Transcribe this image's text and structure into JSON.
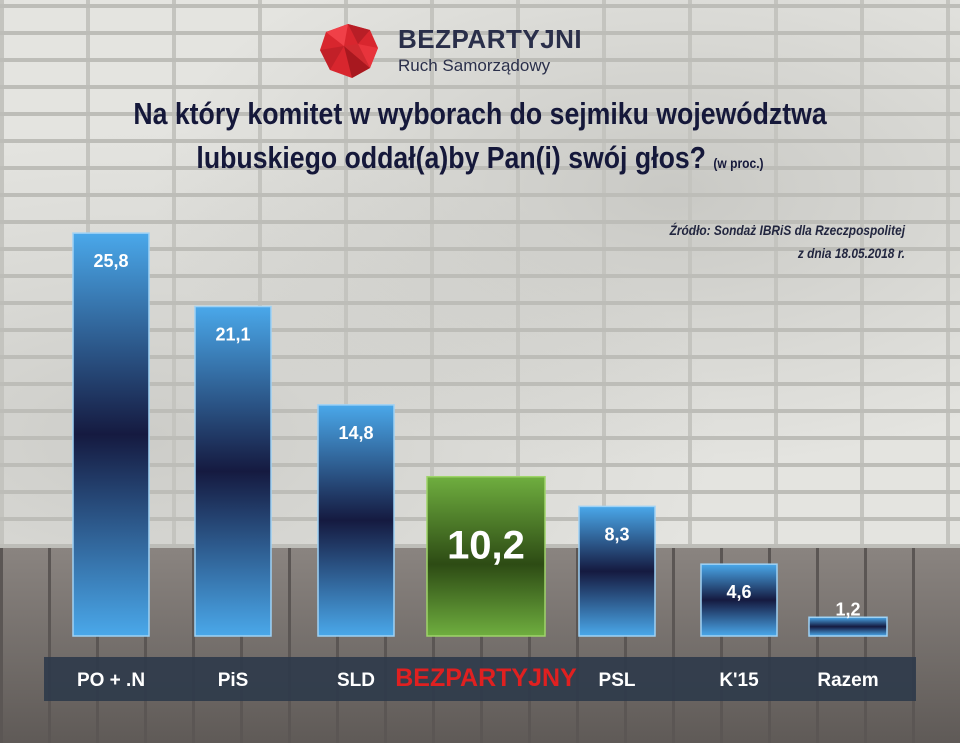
{
  "logo": {
    "name": "BEZPARTYJNI",
    "subtitle": "Ruch Samorządowy"
  },
  "title": {
    "line1": "Na który komitet w wyborach do sejmiku województwa",
    "line2": "lubuskiego oddał(a)by Pan(i) swój głos?",
    "unit": "(w proc.)"
  },
  "source": {
    "line1": "Źródło: Sondaż IBRiS dla Rzeczpospolitej",
    "line2": "z dnia 18.05.2018 r."
  },
  "colors": {
    "bar_blue_light": "#4aa8ea",
    "bar_blue_dark": "#151a40",
    "bar_green_light": "#6fae3f",
    "bar_green_dark": "#2d4b14",
    "label_strip": "#2e3a4a",
    "highlight_label": "#e02020"
  },
  "chart_data": {
    "type": "bar",
    "categories": [
      "PO + .N",
      "PiS",
      "SLD",
      "BEZPARTYJNY",
      "PSL",
      "K'15",
      "Razem"
    ],
    "values": [
      25.8,
      21.1,
      14.8,
      10.2,
      8.3,
      4.6,
      1.2
    ],
    "value_labels": [
      "25,8",
      "21,1",
      "14,8",
      "10,2",
      "8,3",
      "4,6",
      "1,2"
    ],
    "highlight": "BEZPARTYJNY",
    "ylim": [
      0,
      26
    ]
  }
}
